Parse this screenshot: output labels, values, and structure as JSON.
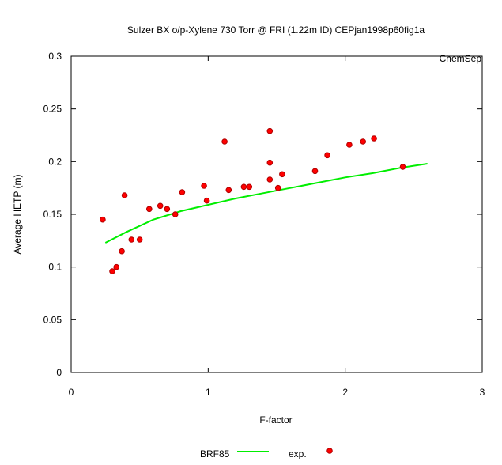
{
  "chart_data": {
    "type": "scatter",
    "title": "Sulzer BX o/p-Xylene 730 Torr @ FRI (1.22m ID) CEPjan1998p60fig1a",
    "watermark": "ChemSep",
    "xlabel": "F-factor",
    "ylabel": "Average HETP (m)",
    "xlim": [
      0,
      3
    ],
    "ylim": [
      0,
      0.3
    ],
    "x_ticks": [
      "0",
      "1",
      "2",
      "3"
    ],
    "y_ticks": [
      "0",
      "0.05",
      "0.1",
      "0.15",
      "0.2",
      "0.25",
      "0.3"
    ],
    "grid": false,
    "legend_position": "bottom",
    "series": [
      {
        "name": "BRF85",
        "type": "line",
        "color": "#00ee00",
        "x": [
          0.25,
          0.4,
          0.6,
          0.8,
          1.0,
          1.2,
          1.4,
          1.6,
          1.8,
          2.0,
          2.2,
          2.4,
          2.6
        ],
        "y": [
          0.123,
          0.133,
          0.145,
          0.153,
          0.159,
          0.165,
          0.17,
          0.175,
          0.18,
          0.185,
          0.189,
          0.194,
          0.198
        ]
      },
      {
        "name": "exp.",
        "type": "scatter",
        "color": "#ff0000",
        "x": [
          0.23,
          0.3,
          0.33,
          0.37,
          0.39,
          0.44,
          0.5,
          0.57,
          0.65,
          0.7,
          0.76,
          0.81,
          0.97,
          0.99,
          1.12,
          1.15,
          1.26,
          1.3,
          1.45,
          1.45,
          1.45,
          1.51,
          1.54,
          1.78,
          1.87,
          2.03,
          2.13,
          2.21,
          2.42
        ],
        "y": [
          0.145,
          0.096,
          0.1,
          0.115,
          0.168,
          0.126,
          0.126,
          0.155,
          0.158,
          0.155,
          0.15,
          0.171,
          0.177,
          0.163,
          0.219,
          0.173,
          0.176,
          0.176,
          0.229,
          0.199,
          0.183,
          0.175,
          0.188,
          0.191,
          0.206,
          0.216,
          0.219,
          0.222,
          0.195
        ]
      }
    ]
  }
}
